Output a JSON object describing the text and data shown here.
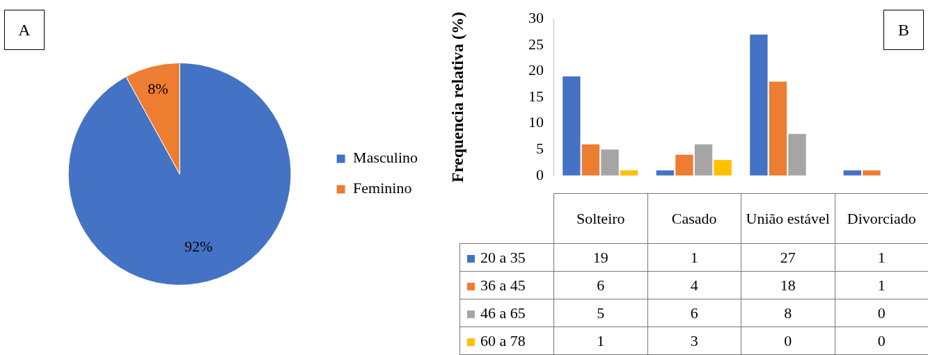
{
  "chart_data": [
    {
      "type": "pie",
      "categories": [
        "Masculino",
        "Feminino"
      ],
      "values": [
        92,
        8
      ],
      "value_labels": [
        "92%",
        "8%"
      ],
      "colors": [
        "#4472c4",
        "#ed7d31"
      ],
      "legend": "right",
      "annotations": [
        "A"
      ]
    },
    {
      "type": "bar",
      "categories": [
        "Solteiro",
        "Casado",
        "União estável",
        "Divorciado"
      ],
      "ylabel": "Frequencia relativa (%)",
      "ylim": [
        0,
        30
      ],
      "yticks": [
        0,
        5,
        10,
        15,
        20,
        25,
        30
      ],
      "grid": false,
      "legend": "bottom",
      "data_labels": true,
      "annotations": [
        "B"
      ],
      "series": [
        {
          "name": "20 a 35",
          "color": "#4472c4",
          "values": [
            19,
            1,
            27,
            1
          ]
        },
        {
          "name": "36 a 45",
          "color": "#ed7d31",
          "values": [
            6,
            4,
            18,
            1
          ]
        },
        {
          "name": "46 a 65",
          "color": "#a5a5a5",
          "values": [
            5,
            6,
            8,
            0
          ]
        },
        {
          "name": "60 a 78",
          "color": "#ffc000",
          "values": [
            1,
            3,
            0,
            0
          ]
        }
      ]
    }
  ]
}
